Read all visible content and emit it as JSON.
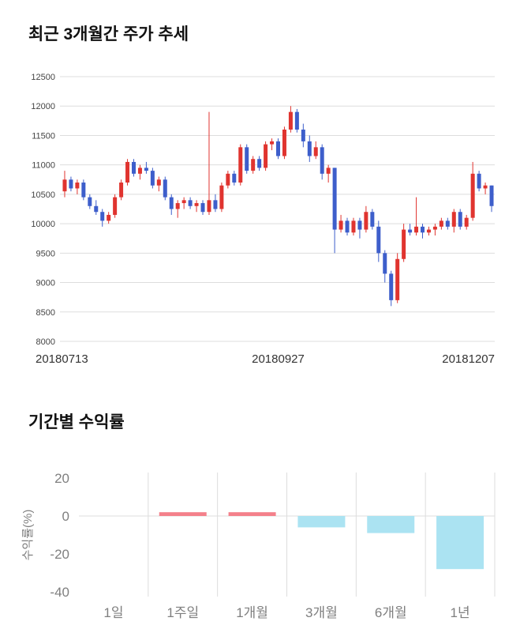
{
  "chart_data": [
    {
      "type": "candlestick",
      "title": "최근 3개월간 주가 추세",
      "ylim": [
        8000,
        12500
      ],
      "yticks": [
        12500,
        12000,
        11500,
        11000,
        10500,
        10000,
        9500,
        9000,
        8500,
        8000
      ],
      "xticks": [
        "20180713",
        "20180927",
        "20181207"
      ],
      "grid": true,
      "colors": {
        "up": "#e0342f",
        "down": "#3d5ecb",
        "grid": "#dddddd",
        "tick_text": "#444444",
        "date_text": "#333333"
      },
      "candles_ohlc": [
        [
          10550,
          10900,
          10450,
          10750
        ],
        [
          10750,
          10800,
          10550,
          10600
        ],
        [
          10600,
          10750,
          10500,
          10700
        ],
        [
          10700,
          10750,
          10400,
          10450
        ],
        [
          10450,
          10500,
          10250,
          10300
        ],
        [
          10300,
          10400,
          10150,
          10200
        ],
        [
          10200,
          10250,
          9950,
          10050
        ],
        [
          10050,
          10200,
          10000,
          10150
        ],
        [
          10150,
          10500,
          10100,
          10450
        ],
        [
          10450,
          10750,
          10400,
          10700
        ],
        [
          10700,
          11100,
          10650,
          11050
        ],
        [
          11050,
          11100,
          10800,
          10850
        ],
        [
          10850,
          11000,
          10750,
          10950
        ],
        [
          10950,
          11050,
          10850,
          10900
        ],
        [
          10900,
          10950,
          10600,
          10650
        ],
        [
          10650,
          10800,
          10550,
          10750
        ],
        [
          10750,
          10800,
          10400,
          10450
        ],
        [
          10450,
          10500,
          10150,
          10250
        ],
        [
          10250,
          10400,
          10100,
          10350
        ],
        [
          10350,
          10450,
          10250,
          10400
        ],
        [
          10400,
          10450,
          10250,
          10300
        ],
        [
          10300,
          10400,
          10200,
          10350
        ],
        [
          10350,
          10400,
          10150,
          10200
        ],
        [
          10200,
          11900,
          10150,
          10400
        ],
        [
          10400,
          10500,
          10200,
          10250
        ],
        [
          10250,
          10700,
          10200,
          10650
        ],
        [
          10650,
          10900,
          10600,
          10850
        ],
        [
          10850,
          10900,
          10650,
          10700
        ],
        [
          10700,
          11350,
          10650,
          11300
        ],
        [
          11300,
          11350,
          10850,
          10900
        ],
        [
          10900,
          11150,
          10850,
          11100
        ],
        [
          11100,
          11150,
          10900,
          10950
        ],
        [
          10950,
          11400,
          10900,
          11350
        ],
        [
          11350,
          11450,
          11250,
          11400
        ],
        [
          11400,
          11450,
          11100,
          11150
        ],
        [
          11150,
          11650,
          11100,
          11600
        ],
        [
          11600,
          12000,
          11550,
          11900
        ],
        [
          11900,
          11950,
          11550,
          11600
        ],
        [
          11600,
          11700,
          11300,
          11400
        ],
        [
          11400,
          11500,
          11050,
          11150
        ],
        [
          11150,
          11400,
          11100,
          11300
        ],
        [
          11300,
          11350,
          10750,
          10850
        ],
        [
          10850,
          11000,
          10700,
          10950
        ],
        [
          10950,
          10950,
          9500,
          9900
        ],
        [
          9900,
          10150,
          9850,
          10050
        ],
        [
          10050,
          10100,
          9800,
          9850
        ],
        [
          9850,
          10100,
          9800,
          10050
        ],
        [
          10050,
          10100,
          9750,
          9900
        ],
        [
          9900,
          10300,
          9850,
          10200
        ],
        [
          10200,
          10250,
          9900,
          9950
        ],
        [
          9950,
          10050,
          9350,
          9500
        ],
        [
          9500,
          9550,
          9000,
          9150
        ],
        [
          9150,
          9200,
          8600,
          8700
        ],
        [
          8700,
          9500,
          8650,
          9400
        ],
        [
          9400,
          10000,
          9350,
          9900
        ],
        [
          9900,
          10000,
          9800,
          9850
        ],
        [
          9850,
          10450,
          9800,
          9950
        ],
        [
          9950,
          10000,
          9750,
          9850
        ],
        [
          9850,
          9950,
          9800,
          9900
        ],
        [
          9900,
          10000,
          9800,
          9950
        ],
        [
          9950,
          10100,
          9900,
          10050
        ],
        [
          10050,
          10100,
          9900,
          9950
        ],
        [
          9950,
          10250,
          9850,
          10200
        ],
        [
          10200,
          10250,
          9900,
          9950
        ],
        [
          9950,
          10150,
          9900,
          10100
        ],
        [
          10100,
          11050,
          10050,
          10850
        ],
        [
          10850,
          10900,
          10550,
          10600
        ],
        [
          10600,
          10700,
          10500,
          10650
        ],
        [
          10650,
          10650,
          10200,
          10300
        ]
      ]
    },
    {
      "type": "bar",
      "title": "기간별 수익률",
      "ylabel": "수익률(%)",
      "categories": [
        "1일",
        "1주일",
        "1개월",
        "3개월",
        "6개월",
        "1년"
      ],
      "values": [
        0,
        2,
        2,
        -6,
        -9,
        -28
      ],
      "ylim": [
        -40,
        20
      ],
      "yticks": [
        20,
        0,
        -20,
        -40
      ],
      "grid": true,
      "legend": "none",
      "colors": {
        "positive": "#f4808a",
        "negative": "#abe3f2",
        "grid": "#dddddd",
        "text": "#7f7f7f"
      }
    }
  ]
}
